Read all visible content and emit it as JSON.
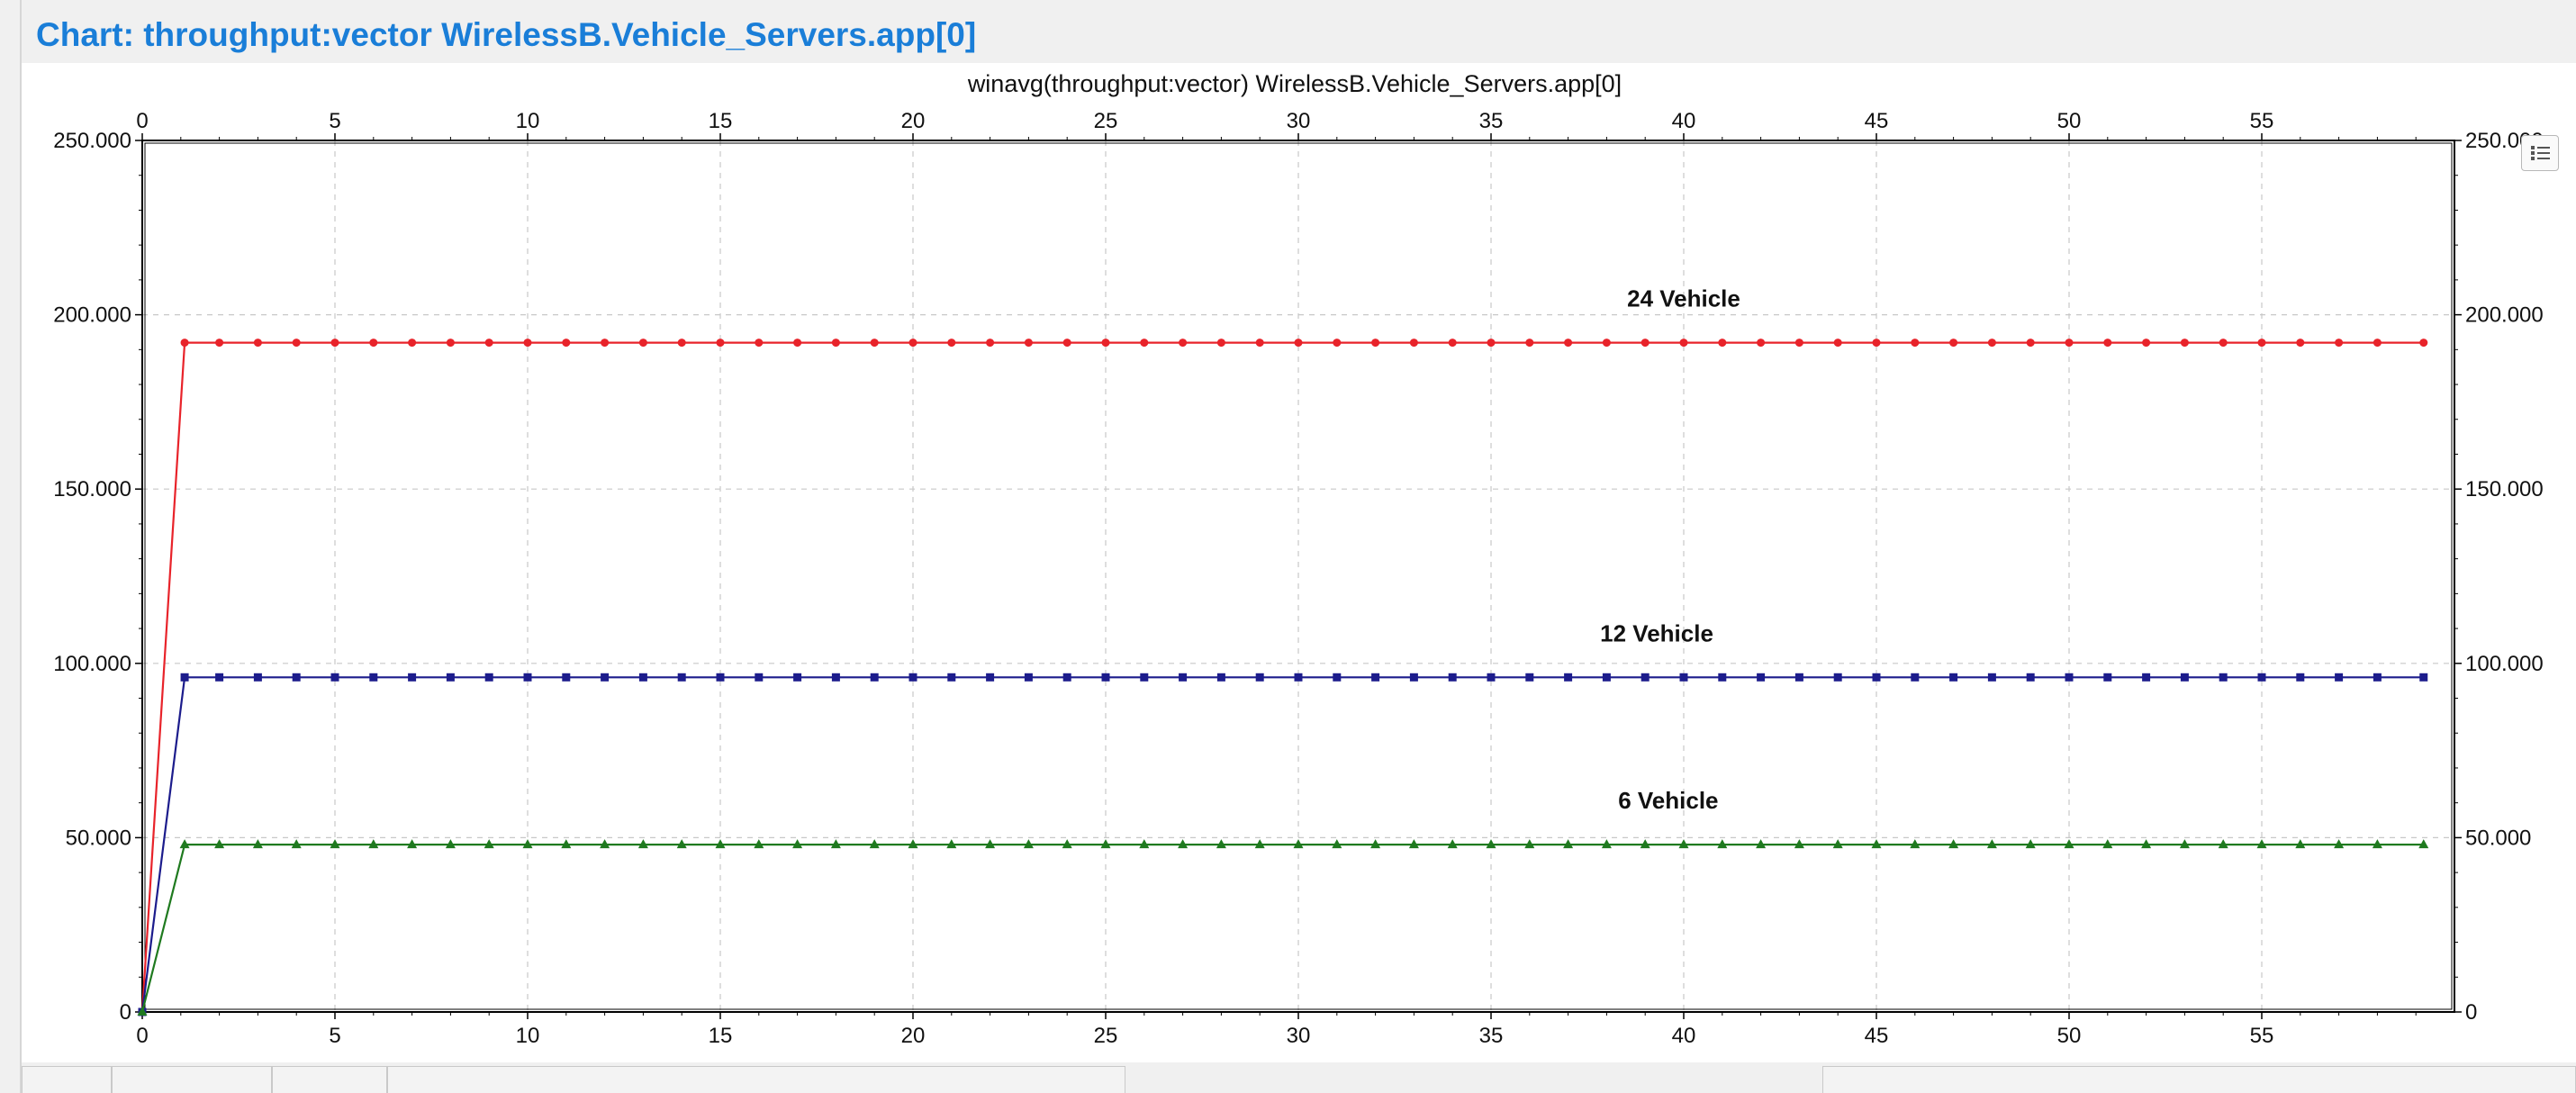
{
  "window": {
    "title": "Chart: throughput:vector WirelessB.Vehicle_Servers.app[0]"
  },
  "toolbar": {
    "legend_icon": "list-icon"
  },
  "colors": {
    "title": "#1a7ed8",
    "series_24": "#e8232a",
    "series_12": "#1c1c8c",
    "series_6": "#1f7a1f",
    "grid": "#c8c8c8"
  },
  "chart_data": {
    "type": "line",
    "title": "winavg(throughput:vector) WirelessB.Vehicle_Servers.app[0]",
    "xlabel": "",
    "ylabel": "",
    "xlim": [
      0,
      60
    ],
    "ylim": [
      0,
      250000
    ],
    "x_ticks": [
      "0",
      "5",
      "10",
      "15",
      "20",
      "25",
      "30",
      "35",
      "40",
      "45",
      "50",
      "55"
    ],
    "y_ticks": [
      "0",
      "50.000",
      "100.000",
      "150.000",
      "200.000",
      "250.000"
    ],
    "grid": true,
    "series": [
      {
        "name": "24 Vehicle",
        "marker": "circle",
        "color": "#e8232a",
        "points": [
          [
            0,
            0
          ],
          [
            1.1,
            192000
          ],
          [
            2,
            192000
          ],
          [
            3,
            192000
          ],
          [
            4,
            192000
          ],
          [
            5,
            192000
          ],
          [
            6,
            192000
          ],
          [
            7,
            192000
          ],
          [
            8,
            192000
          ],
          [
            9,
            192000
          ],
          [
            10,
            192000
          ],
          [
            11,
            192000
          ],
          [
            12,
            192000
          ],
          [
            13,
            192000
          ],
          [
            14,
            192000
          ],
          [
            15,
            192000
          ],
          [
            16,
            192000
          ],
          [
            17,
            192000
          ],
          [
            18,
            192000
          ],
          [
            19,
            192000
          ],
          [
            20,
            192000
          ],
          [
            21,
            192000
          ],
          [
            22,
            192000
          ],
          [
            23,
            192000
          ],
          [
            24,
            192000
          ],
          [
            25,
            192000
          ],
          [
            26,
            192000
          ],
          [
            27,
            192000
          ],
          [
            28,
            192000
          ],
          [
            29,
            192000
          ],
          [
            30,
            192000
          ],
          [
            31,
            192000
          ],
          [
            32,
            192000
          ],
          [
            33,
            192000
          ],
          [
            34,
            192000
          ],
          [
            35,
            192000
          ],
          [
            36,
            192000
          ],
          [
            37,
            192000
          ],
          [
            38,
            192000
          ],
          [
            39,
            192000
          ],
          [
            40,
            192000
          ],
          [
            41,
            192000
          ],
          [
            42,
            192000
          ],
          [
            43,
            192000
          ],
          [
            44,
            192000
          ],
          [
            45,
            192000
          ],
          [
            46,
            192000
          ],
          [
            47,
            192000
          ],
          [
            48,
            192000
          ],
          [
            49,
            192000
          ],
          [
            50,
            192000
          ],
          [
            51,
            192000
          ],
          [
            52,
            192000
          ],
          [
            53,
            192000
          ],
          [
            54,
            192000
          ],
          [
            55,
            192000
          ],
          [
            56,
            192000
          ],
          [
            57,
            192000
          ],
          [
            58,
            192000
          ],
          [
            59.2,
            192000
          ]
        ],
        "label_x": 40
      },
      {
        "name": "12 Vehicle",
        "marker": "square",
        "color": "#1c1c8c",
        "points": [
          [
            0,
            0
          ],
          [
            1.1,
            96000
          ],
          [
            2,
            96000
          ],
          [
            3,
            96000
          ],
          [
            4,
            96000
          ],
          [
            5,
            96000
          ],
          [
            6,
            96000
          ],
          [
            7,
            96000
          ],
          [
            8,
            96000
          ],
          [
            9,
            96000
          ],
          [
            10,
            96000
          ],
          [
            11,
            96000
          ],
          [
            12,
            96000
          ],
          [
            13,
            96000
          ],
          [
            14,
            96000
          ],
          [
            15,
            96000
          ],
          [
            16,
            96000
          ],
          [
            17,
            96000
          ],
          [
            18,
            96000
          ],
          [
            19,
            96000
          ],
          [
            20,
            96000
          ],
          [
            21,
            96000
          ],
          [
            22,
            96000
          ],
          [
            23,
            96000
          ],
          [
            24,
            96000
          ],
          [
            25,
            96000
          ],
          [
            26,
            96000
          ],
          [
            27,
            96000
          ],
          [
            28,
            96000
          ],
          [
            29,
            96000
          ],
          [
            30,
            96000
          ],
          [
            31,
            96000
          ],
          [
            32,
            96000
          ],
          [
            33,
            96000
          ],
          [
            34,
            96000
          ],
          [
            35,
            96000
          ],
          [
            36,
            96000
          ],
          [
            37,
            96000
          ],
          [
            38,
            96000
          ],
          [
            39,
            96000
          ],
          [
            40,
            96000
          ],
          [
            41,
            96000
          ],
          [
            42,
            96000
          ],
          [
            43,
            96000
          ],
          [
            44,
            96000
          ],
          [
            45,
            96000
          ],
          [
            46,
            96000
          ],
          [
            47,
            96000
          ],
          [
            48,
            96000
          ],
          [
            49,
            96000
          ],
          [
            50,
            96000
          ],
          [
            51,
            96000
          ],
          [
            52,
            96000
          ],
          [
            53,
            96000
          ],
          [
            54,
            96000
          ],
          [
            55,
            96000
          ],
          [
            56,
            96000
          ],
          [
            57,
            96000
          ],
          [
            58,
            96000
          ],
          [
            59.2,
            96000
          ]
        ],
        "label_x": 39.3
      },
      {
        "name": "6 Vehicle",
        "marker": "triangle",
        "color": "#1f7a1f",
        "points": [
          [
            0,
            0
          ],
          [
            1.1,
            48000
          ],
          [
            2,
            48000
          ],
          [
            3,
            48000
          ],
          [
            4,
            48000
          ],
          [
            5,
            48000
          ],
          [
            6,
            48000
          ],
          [
            7,
            48000
          ],
          [
            8,
            48000
          ],
          [
            9,
            48000
          ],
          [
            10,
            48000
          ],
          [
            11,
            48000
          ],
          [
            12,
            48000
          ],
          [
            13,
            48000
          ],
          [
            14,
            48000
          ],
          [
            15,
            48000
          ],
          [
            16,
            48000
          ],
          [
            17,
            48000
          ],
          [
            18,
            48000
          ],
          [
            19,
            48000
          ],
          [
            20,
            48000
          ],
          [
            21,
            48000
          ],
          [
            22,
            48000
          ],
          [
            23,
            48000
          ],
          [
            24,
            48000
          ],
          [
            25,
            48000
          ],
          [
            26,
            48000
          ],
          [
            27,
            48000
          ],
          [
            28,
            48000
          ],
          [
            29,
            48000
          ],
          [
            30,
            48000
          ],
          [
            31,
            48000
          ],
          [
            32,
            48000
          ],
          [
            33,
            48000
          ],
          [
            34,
            48000
          ],
          [
            35,
            48000
          ],
          [
            36,
            48000
          ],
          [
            37,
            48000
          ],
          [
            38,
            48000
          ],
          [
            39,
            48000
          ],
          [
            40,
            48000
          ],
          [
            41,
            48000
          ],
          [
            42,
            48000
          ],
          [
            43,
            48000
          ],
          [
            44,
            48000
          ],
          [
            45,
            48000
          ],
          [
            46,
            48000
          ],
          [
            47,
            48000
          ],
          [
            48,
            48000
          ],
          [
            49,
            48000
          ],
          [
            50,
            48000
          ],
          [
            51,
            48000
          ],
          [
            52,
            48000
          ],
          [
            53,
            48000
          ],
          [
            54,
            48000
          ],
          [
            55,
            48000
          ],
          [
            56,
            48000
          ],
          [
            57,
            48000
          ],
          [
            58,
            48000
          ],
          [
            59.2,
            48000
          ]
        ],
        "label_x": 39.6
      }
    ]
  }
}
